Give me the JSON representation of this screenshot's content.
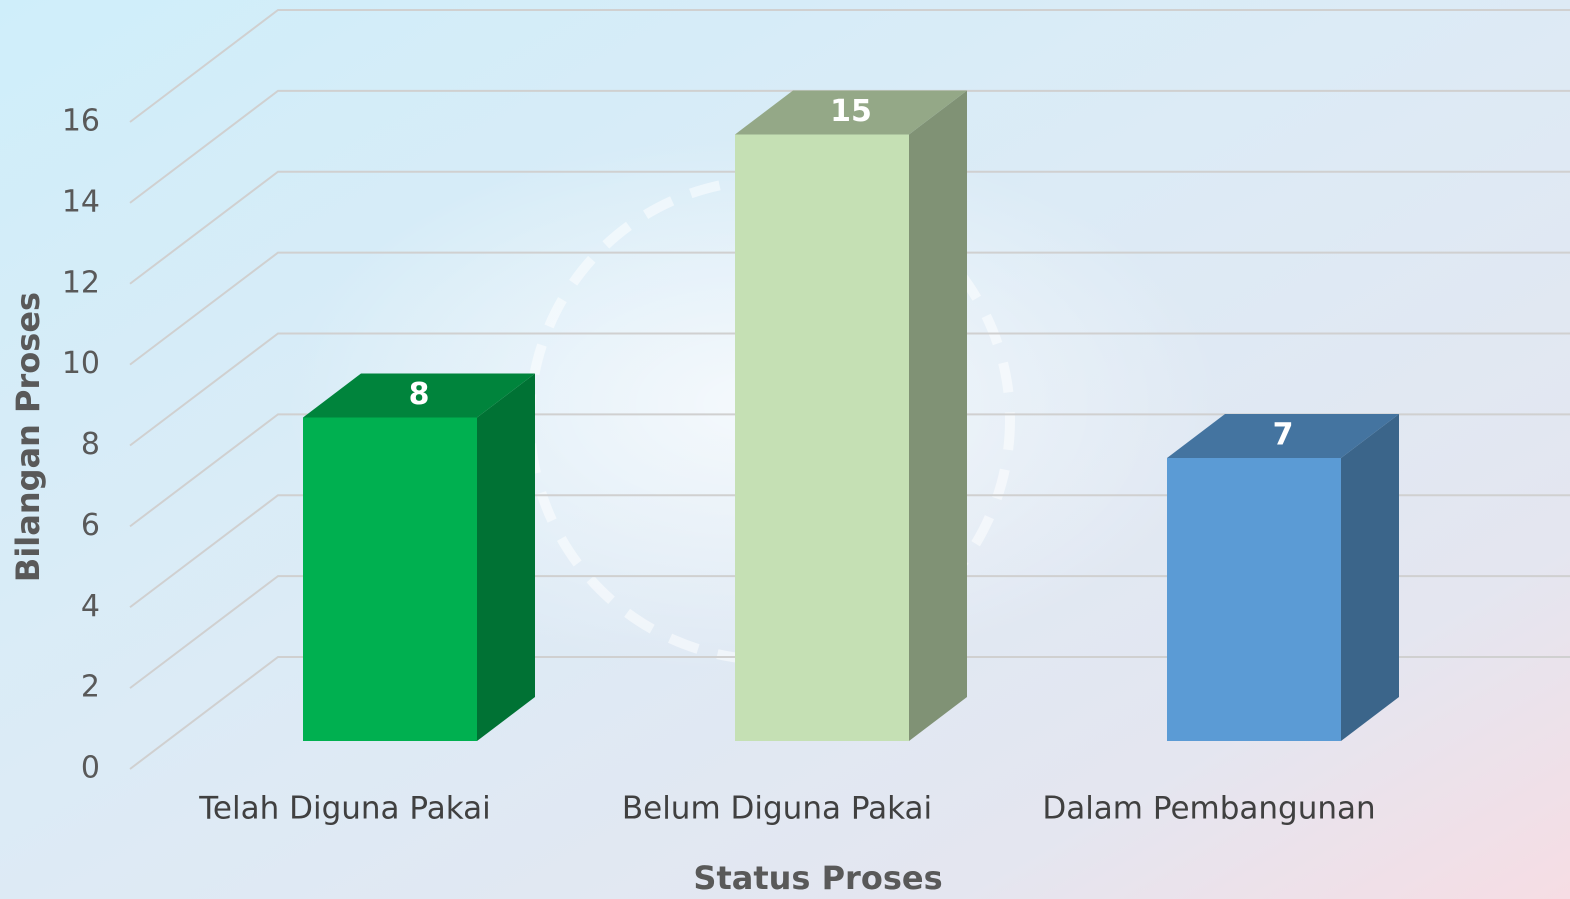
{
  "chart_data": {
    "type": "bar3d",
    "x_label": "Status Proses",
    "y_label": "Bilangan Proses",
    "categories": [
      "Telah Diguna Pakai",
      "Belum Diguna Pakai",
      "Dalam Pembangunan"
    ],
    "values": [
      8,
      15,
      7
    ],
    "colors": [
      "#00b050",
      "#c5e0b4",
      "#5b9bd5"
    ],
    "ylim": [
      0,
      16
    ],
    "yticks": [
      0,
      2,
      4,
      6,
      8,
      10,
      12,
      14,
      16
    ],
    "grid": true
  }
}
